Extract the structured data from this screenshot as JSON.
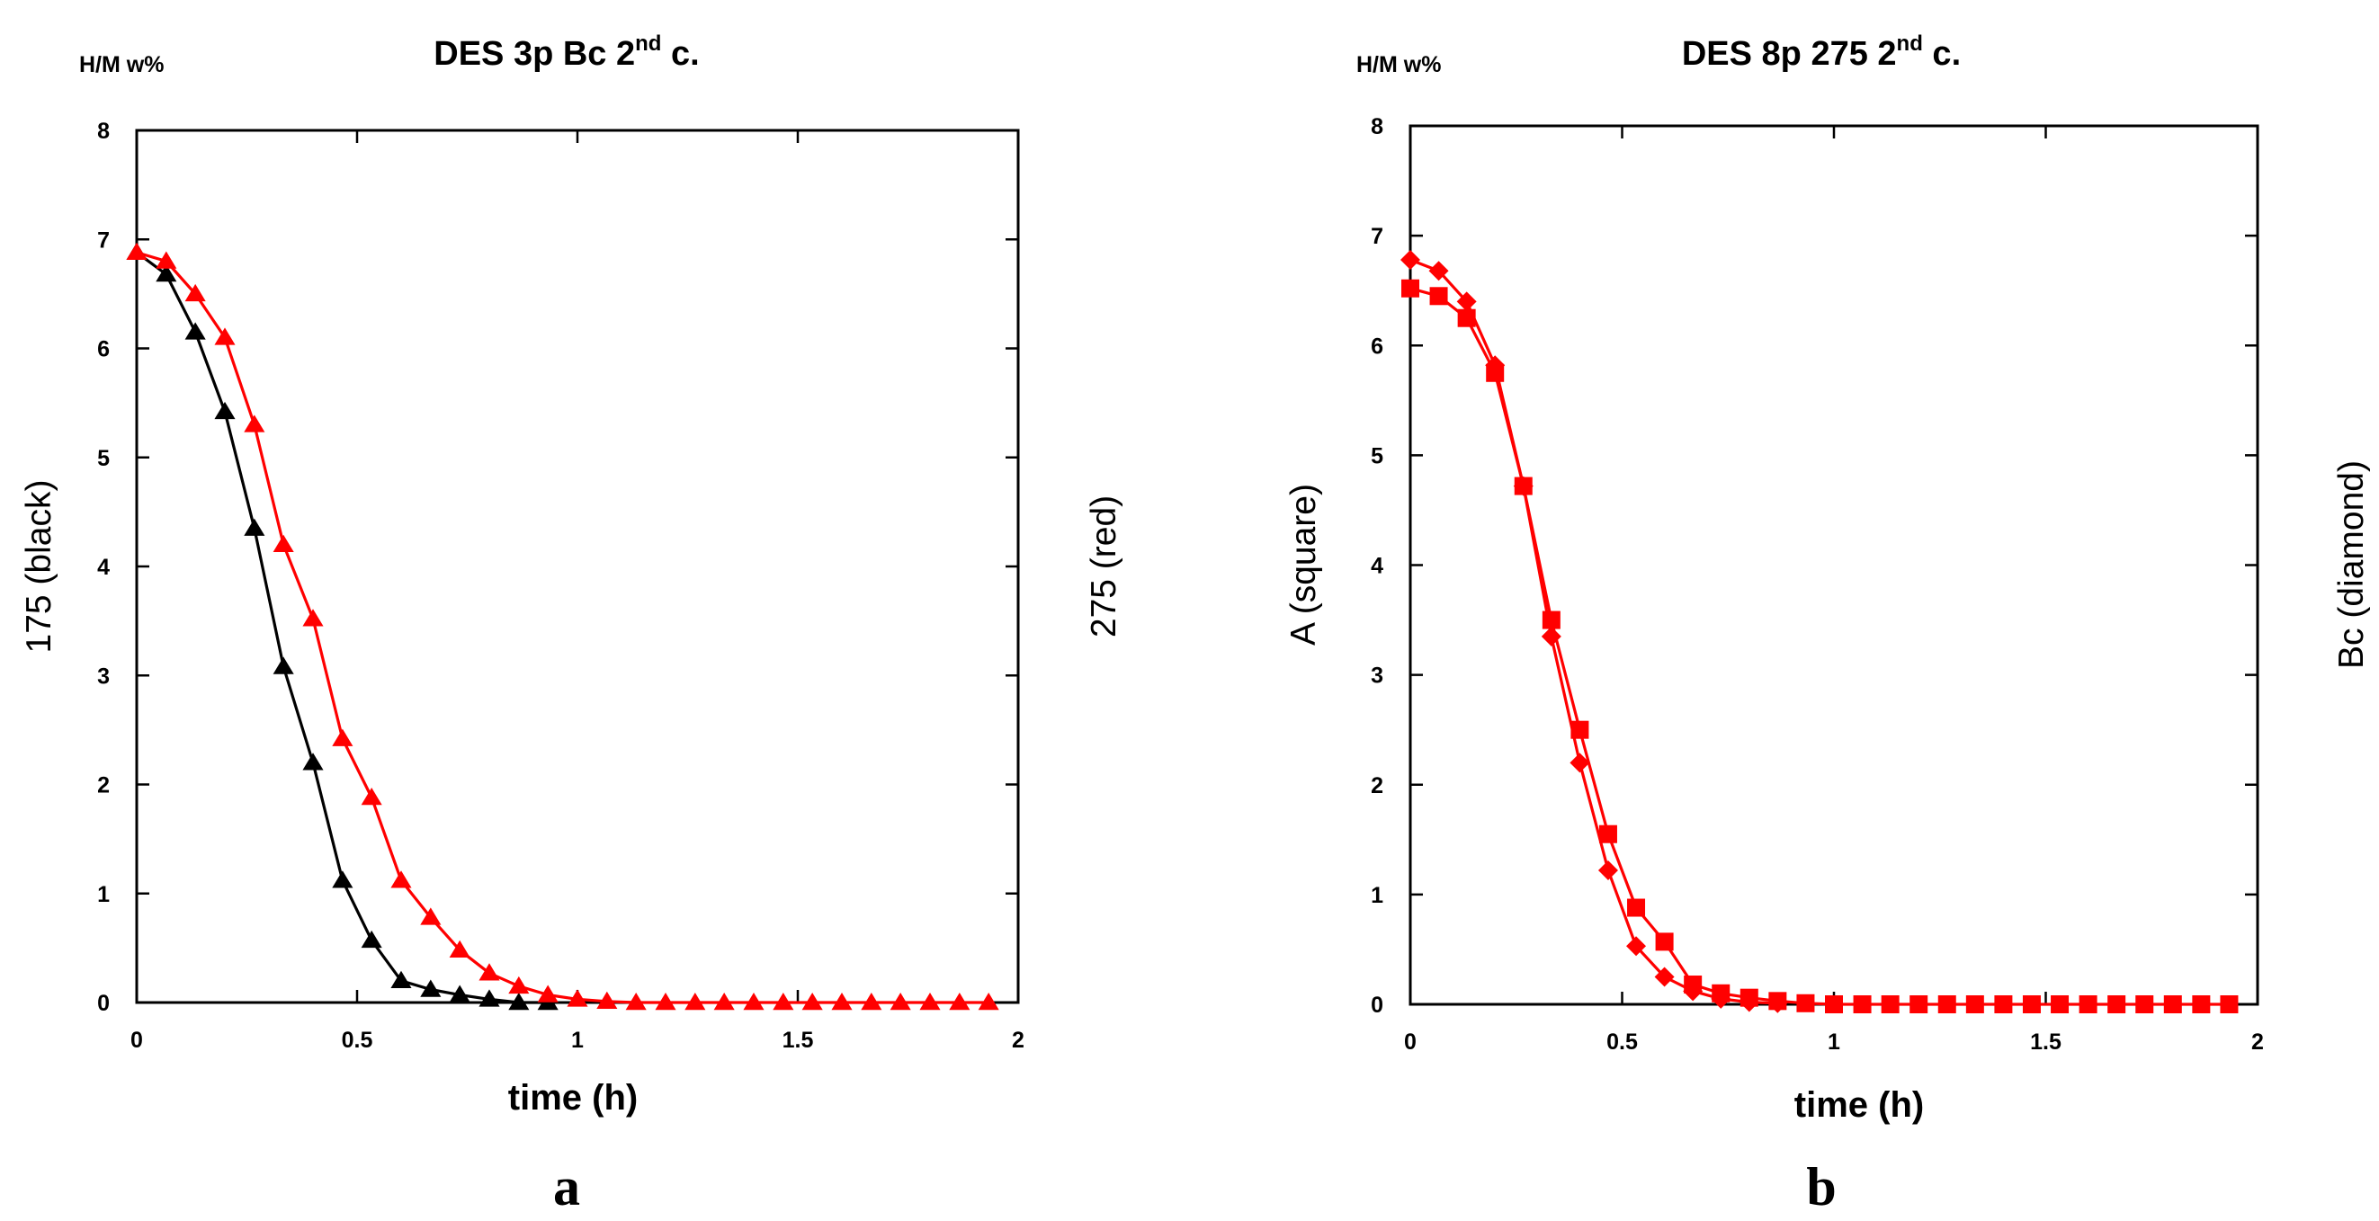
{
  "chart_data": [
    {
      "type": "line",
      "panel_label": "a",
      "title": "DES 3p Bc 2",
      "title_sup": "nd",
      "title_suffix": " c.",
      "unit_label": "H/M w%",
      "xlabel": "time (h)",
      "ylabel": "175 (black)",
      "ylabel_right": "275 (red)",
      "xlim": [
        0,
        2
      ],
      "ylim": [
        0,
        8
      ],
      "xticks": [
        "0",
        "0.5",
        "1",
        "1.5",
        "2"
      ],
      "yticks": [
        "0",
        "1",
        "2",
        "3",
        "4",
        "5",
        "6",
        "7",
        "8"
      ],
      "series": [
        {
          "name": "175 (black)",
          "color": "#000000",
          "marker": "triangle",
          "x": [
            0,
            0.067,
            0.133,
            0.2,
            0.267,
            0.333,
            0.4,
            0.467,
            0.533,
            0.6,
            0.667,
            0.733,
            0.8,
            0.867,
            0.933
          ],
          "y": [
            6.88,
            6.68,
            6.15,
            5.42,
            4.35,
            3.08,
            2.2,
            1.12,
            0.57,
            0.2,
            0.12,
            0.07,
            0.03,
            0.0,
            0.0
          ]
        },
        {
          "name": "275 (red)",
          "color": "#ff0000",
          "marker": "triangle",
          "x": [
            0,
            0.067,
            0.133,
            0.2,
            0.267,
            0.333,
            0.4,
            0.467,
            0.533,
            0.6,
            0.667,
            0.733,
            0.8,
            0.867,
            0.933,
            1.0,
            1.067,
            1.133,
            1.2,
            1.267,
            1.333,
            1.4,
            1.467,
            1.533,
            1.6,
            1.667,
            1.733,
            1.8,
            1.867,
            1.933
          ],
          "y": [
            6.88,
            6.8,
            6.5,
            6.1,
            5.3,
            4.2,
            3.52,
            2.42,
            1.88,
            1.12,
            0.78,
            0.48,
            0.27,
            0.15,
            0.07,
            0.03,
            0.01,
            0.0,
            0.0,
            0.0,
            0.0,
            0.0,
            0.0,
            0.0,
            0.0,
            0.0,
            0.0,
            0.0,
            0.0,
            0.0
          ]
        }
      ]
    },
    {
      "type": "line",
      "panel_label": "b",
      "title": "DES 8p 275 2",
      "title_sup": "nd",
      "title_suffix": " c.",
      "unit_label": "H/M w%",
      "xlabel": "time (h)",
      "ylabel": "A (square)",
      "ylabel_right": "Bc (diamond)",
      "xlim": [
        0,
        2
      ],
      "ylim": [
        0,
        8
      ],
      "xticks": [
        "0",
        "0.5",
        "1",
        "1.5",
        "2"
      ],
      "yticks": [
        "0",
        "1",
        "2",
        "3",
        "4",
        "5",
        "6",
        "7",
        "8"
      ],
      "series": [
        {
          "name": "A (square)",
          "color": "#ff0000",
          "marker": "square",
          "x": [
            0,
            0.067,
            0.133,
            0.2,
            0.267,
            0.333,
            0.4,
            0.467,
            0.533,
            0.6,
            0.667,
            0.733,
            0.8,
            0.867,
            0.933,
            1.0,
            1.067,
            1.133,
            1.2,
            1.267,
            1.333,
            1.4,
            1.467,
            1.533,
            1.6,
            1.667,
            1.733,
            1.8,
            1.867,
            1.933
          ],
          "y": [
            6.52,
            6.45,
            6.25,
            5.75,
            4.72,
            3.5,
            2.5,
            1.55,
            0.88,
            0.57,
            0.18,
            0.1,
            0.06,
            0.03,
            0.01,
            0.0,
            0.0,
            0.0,
            0.0,
            0.0,
            0.0,
            0.0,
            0.0,
            0.0,
            0.0,
            0.0,
            0.0,
            0.0,
            0.0,
            0.0
          ]
        },
        {
          "name": "Bc (diamond)",
          "color": "#ff0000",
          "marker": "diamond",
          "x": [
            0,
            0.067,
            0.133,
            0.2,
            0.267,
            0.333,
            0.4,
            0.467,
            0.533,
            0.6,
            0.667,
            0.733,
            0.8,
            0.867
          ],
          "y": [
            6.78,
            6.68,
            6.4,
            5.82,
            4.72,
            3.35,
            2.2,
            1.22,
            0.53,
            0.25,
            0.12,
            0.05,
            0.02,
            0.01
          ]
        }
      ]
    }
  ]
}
